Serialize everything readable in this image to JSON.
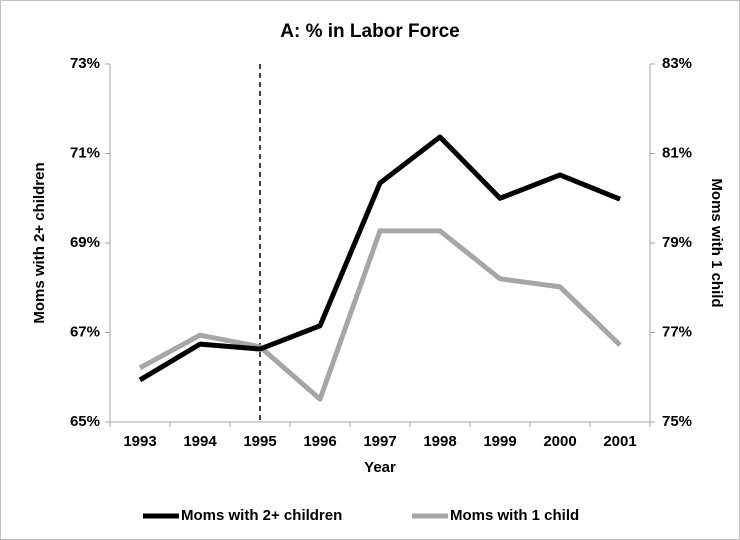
{
  "chart_data": {
    "type": "line",
    "title": "A: % in Labor Force",
    "x_label": "Year",
    "y_label": "Moms with 2+ children",
    "y2_label": "Moms with 1 child",
    "categories": [
      "1993",
      "1994",
      "1995",
      "1996",
      "1997",
      "1998",
      "1999",
      "2000",
      "2001"
    ],
    "series": [
      {
        "name": "Moms with 2+ children",
        "color": "#000000",
        "axis": "y",
        "values": [
          65.94,
          66.74,
          66.63,
          67.15,
          70.34,
          71.37,
          70.0,
          70.52,
          69.98
        ]
      },
      {
        "name": "Moms with 1 child",
        "color": "#a6a6a6",
        "axis": "y2",
        "values": [
          76.21,
          76.94,
          76.68,
          75.51,
          79.27,
          79.27,
          78.2,
          78.02,
          76.72
        ]
      }
    ],
    "ylim": [
      65,
      73
    ],
    "yticks": [
      {
        "value": 65,
        "label": "65%"
      },
      {
        "value": 67,
        "label": "67%"
      },
      {
        "value": 69,
        "label": "69%"
      },
      {
        "value": 71,
        "label": "71%"
      },
      {
        "value": 73,
        "label": "73%"
      }
    ],
    "y2lim": [
      75,
      83
    ],
    "y2ticks": [
      {
        "value": 75,
        "label": "75%"
      },
      {
        "value": 77,
        "label": "77%"
      },
      {
        "value": 79,
        "label": "79%"
      },
      {
        "value": 81,
        "label": "81%"
      },
      {
        "value": 83,
        "label": "83%"
      }
    ],
    "reference_line": {
      "category": "1995",
      "style": "dashed"
    },
    "grid": false,
    "legend": "bottom"
  }
}
